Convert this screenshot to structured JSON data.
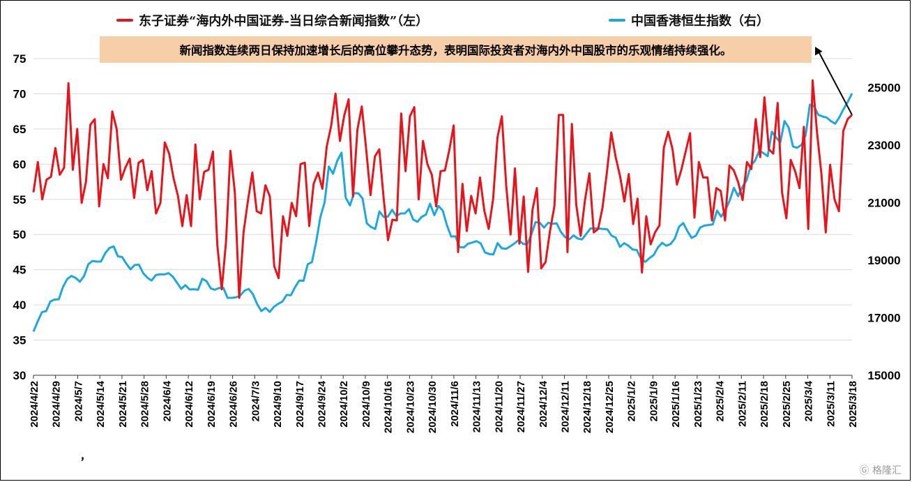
{
  "legend": [
    {
      "name": "东子证券“海内外中国证券-当日综合新闻指数”（左）",
      "color": "#e8141b"
    },
    {
      "name": "中国香港恒生指数（右）",
      "color": "#1ba8e0"
    }
  ],
  "annotation": "新闻指数连续两日保持加速增长后的高位攀升态势，表明国际投资者对海内外中国股市的乐观情绪持续强化。",
  "watermark": "格隆汇",
  "stray_mark": "，",
  "chart_data": {
    "type": "line",
    "x_tick_labels": [
      "2024/4/22",
      "2024/4/29",
      "2024/5/7",
      "2024/5/14",
      "2024/5/21",
      "2024/5/28",
      "2024/6/4",
      "2024/6/12",
      "2024/6/19",
      "2024/6/26",
      "2024/7/3",
      "2024/9/10",
      "2024/9/17",
      "2024/9/24",
      "2024/10/2",
      "2024/10/9",
      "2024/10/16",
      "2024/10/23",
      "2024/10/30",
      "2024/11/6",
      "2024/11/13",
      "2024/11/20",
      "2024/11/27",
      "2024/12/4",
      "2024/12/11",
      "2024/12/18",
      "2024/12/25",
      "2025/1/2",
      "2025/1/9",
      "2025/1/16",
      "2025/1/23",
      "2025/2/4",
      "2025/2/11",
      "2025/2/18",
      "2025/2/25",
      "2025/3/4",
      "2025/3/11",
      "2025/3/18"
    ],
    "y_left": {
      "min": 30,
      "max": 75,
      "ticks": [
        30,
        35,
        40,
        45,
        50,
        55,
        60,
        65,
        70,
        75
      ]
    },
    "y_right": {
      "min": 15000,
      "max": 26000,
      "ticks": [
        15000,
        17000,
        19000,
        21000,
        23000,
        25000
      ]
    },
    "grid": "horizontal",
    "series": [
      {
        "name": "东子证券“海内外中国证券-当日综合新闻指数”（左）",
        "axis": "left",
        "color": "#e8141b",
        "values": [
          56,
          60.3,
          55,
          57.8,
          58.2,
          62.3,
          58.5,
          59.5,
          71.5,
          59.2,
          65,
          54.5,
          57.5,
          65.6,
          66.4,
          54,
          60,
          58,
          67.5,
          65,
          57.8,
          59.5,
          60.8,
          55.2,
          60.2,
          60.6,
          56.3,
          59,
          53,
          54.5,
          63.1,
          61.5,
          58,
          55.5,
          51.2,
          55.6,
          51.2,
          62.8,
          55,
          58.9,
          59.2,
          61.8,
          48.5,
          42.2,
          49,
          61.9,
          56,
          41,
          50.3,
          54.8,
          58.8,
          53.3,
          53,
          57,
          55.4,
          45.5,
          43.8,
          52.6,
          49.8,
          54.5,
          52.6,
          60,
          60.2,
          51.2,
          57.2,
          58.8,
          56.5,
          62.5,
          65.4,
          70,
          63.3,
          66.9,
          69.2,
          55.4,
          64.9,
          68.2,
          62.2,
          55.6,
          61.1,
          62.1,
          55.2,
          49.2,
          52.1,
          52,
          67.2,
          59,
          66.8,
          68.1,
          55,
          63.3,
          60,
          58.5,
          54,
          59,
          59.1,
          62,
          65.5,
          47.5,
          57.2,
          50.5,
          55.5,
          53,
          58.1,
          53.4,
          50.8,
          55,
          63.8,
          66.8,
          57,
          50,
          59.4,
          48.7,
          55.4,
          44.7,
          53.5,
          56.6,
          45.2,
          46.1,
          50.5,
          54,
          67,
          67,
          47.5,
          65.7,
          54.2,
          49.8,
          54.9,
          58.7,
          50.3,
          50.8,
          53.8,
          58.8,
          64.5,
          61,
          58.3,
          54.7,
          58.6,
          51.5,
          55.1,
          44.6,
          52.6,
          48.6,
          50.3,
          51.3,
          62.3,
          64.6,
          62.1,
          57.1,
          59.2,
          61.8,
          64.4,
          52.4,
          60.3,
          58.1,
          58.1,
          52,
          56.6,
          56.2,
          52,
          59.8,
          59.1,
          57.4,
          54.9,
          60.3,
          59.3,
          66.4,
          61,
          69.5,
          62.1,
          61.5,
          68.7,
          56,
          52.3,
          60.6,
          59,
          56.6,
          65.3,
          50.8,
          71.9,
          64.5,
          58.6,
          50.3,
          59.9,
          55,
          53.3,
          64.7,
          66.4,
          67
        ]
      },
      {
        "name": "中国香港恒生指数（右）",
        "axis": "right",
        "color": "#1ba8e0",
        "values": [
          16520,
          16870,
          17190,
          17230,
          17560,
          17630,
          17640,
          18070,
          18340,
          18450,
          18380,
          18250,
          18450,
          18860,
          18970,
          18950,
          18950,
          19240,
          19420,
          19480,
          19130,
          19110,
          18880,
          18680,
          18830,
          18840,
          18550,
          18390,
          18290,
          18480,
          18510,
          18500,
          18550,
          18430,
          18220,
          18000,
          18130,
          17980,
          17990,
          17970,
          18350,
          18270,
          18020,
          17970,
          18030,
          18040,
          17690,
          17690,
          17710,
          17770,
          17940,
          18000,
          17820,
          17480,
          17230,
          17340,
          17200,
          17380,
          17480,
          17560,
          17790,
          17780,
          18060,
          18290,
          18280,
          18860,
          18930,
          19640,
          20500,
          21010,
          22250,
          22000,
          22450,
          22730,
          21170,
          20900,
          21330,
          21320,
          21140,
          20280,
          20150,
          20080,
          20690,
          20500,
          20510,
          20750,
          20530,
          20620,
          20620,
          20770,
          20410,
          20330,
          20500,
          20580,
          20960,
          20560,
          20880,
          20720,
          20200,
          19820,
          19830,
          19450,
          19440,
          19570,
          19610,
          19660,
          19580,
          19270,
          19210,
          19200,
          19590,
          19410,
          19390,
          19480,
          19580,
          19700,
          19570,
          19540,
          19890,
          20320,
          20300,
          20130,
          20300,
          20260,
          20280,
          19980,
          19800,
          19720,
          19860,
          19750,
          19720,
          19910,
          20100,
          20100,
          20100,
          20080,
          20070,
          19850,
          19780,
          19460,
          19590,
          19500,
          19370,
          19350,
          19040,
          18940,
          19070,
          19180,
          19440,
          19600,
          19500,
          19560,
          19750,
          20160,
          20290,
          20000,
          19770,
          19850,
          20130,
          20200,
          20220,
          20240,
          20720,
          20510,
          20750,
          21070,
          21510,
          21220,
          21540,
          21770,
          22280,
          22450,
          22800,
          22720,
          22610,
          23460,
          23260,
          23090,
          23830,
          23600,
          22950,
          22900,
          23000,
          23330,
          24400,
          24350,
          24050,
          23990,
          23950,
          23830,
          23740,
          23960,
          24250,
          24500,
          24790
        ]
      }
    ]
  }
}
